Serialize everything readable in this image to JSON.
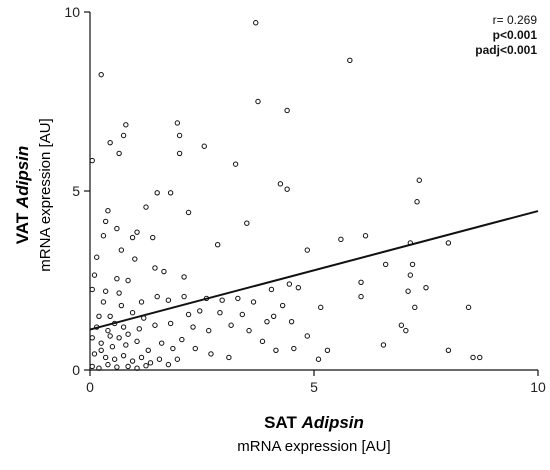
{
  "chart_data": {
    "type": "scatter",
    "xlim": [
      0,
      10
    ],
    "ylim": [
      0,
      10
    ],
    "xticks": [
      0,
      5,
      10
    ],
    "yticks": [
      0,
      5,
      10
    ],
    "xlabel": {
      "bold": "SAT",
      "italic": "Adipsin",
      "line2": "mRNA expression [AU]"
    },
    "ylabel": {
      "bold": "VAT",
      "italic": "Adipsin",
      "line2": "mRNA expression [AU]"
    },
    "annotations": {
      "r": "r= 0.269",
      "p": "p<0.001",
      "padj": "padj<0.001"
    },
    "regression": {
      "x": [
        0,
        10
      ],
      "y": [
        1.13,
        4.44
      ]
    },
    "points": [
      [
        0.25,
        8.25
      ],
      [
        3.7,
        9.7
      ],
      [
        5.8,
        8.65
      ],
      [
        3.75,
        7.5
      ],
      [
        4.4,
        7.25
      ],
      [
        1.95,
        6.9
      ],
      [
        2.0,
        6.55
      ],
      [
        0.8,
        6.85
      ],
      [
        0.75,
        6.55
      ],
      [
        0.45,
        6.35
      ],
      [
        0.65,
        6.05
      ],
      [
        2.55,
        6.25
      ],
      [
        2.0,
        6.05
      ],
      [
        3.25,
        5.75
      ],
      [
        7.35,
        5.3
      ],
      [
        4.25,
        5.2
      ],
      [
        4.4,
        5.05
      ],
      [
        1.5,
        4.95
      ],
      [
        1.8,
        4.95
      ],
      [
        7.3,
        4.7
      ],
      [
        1.25,
        4.55
      ],
      [
        0.4,
        4.45
      ],
      [
        0.35,
        4.15
      ],
      [
        2.2,
        4.4
      ],
      [
        3.5,
        4.1
      ],
      [
        0.6,
        3.95
      ],
      [
        1.05,
        3.85
      ],
      [
        0.3,
        3.75
      ],
      [
        0.95,
        3.7
      ],
      [
        1.4,
        3.7
      ],
      [
        5.6,
        3.65
      ],
      [
        6.15,
        3.75
      ],
      [
        7.15,
        3.55
      ],
      [
        8.0,
        3.55
      ],
      [
        2.85,
        3.5
      ],
      [
        4.85,
        3.35
      ],
      [
        0.7,
        3.35
      ],
      [
        0.15,
        3.15
      ],
      [
        1.0,
        3.1
      ],
      [
        6.6,
        2.95
      ],
      [
        7.2,
        2.95
      ],
      [
        1.45,
        2.85
      ],
      [
        1.65,
        2.75
      ],
      [
        2.1,
        2.6
      ],
      [
        7.5,
        2.3
      ],
      [
        0.05,
        2.25
      ],
      [
        0.35,
        2.2
      ],
      [
        0.6,
        2.55
      ],
      [
        0.85,
        2.5
      ],
      [
        0.65,
        2.15
      ],
      [
        1.5,
        2.05
      ],
      [
        1.75,
        1.95
      ],
      [
        2.1,
        2.05
      ],
      [
        2.6,
        2.0
      ],
      [
        4.05,
        2.25
      ],
      [
        4.45,
        2.4
      ],
      [
        4.65,
        2.3
      ],
      [
        6.05,
        2.45
      ],
      [
        7.15,
        2.65
      ],
      [
        7.1,
        2.2
      ],
      [
        6.05,
        2.05
      ],
      [
        2.95,
        1.95
      ],
      [
        3.3,
        2.0
      ],
      [
        3.65,
        1.9
      ],
      [
        4.3,
        1.8
      ],
      [
        5.15,
        1.75
      ],
      [
        7.25,
        1.75
      ],
      [
        8.45,
        1.75
      ],
      [
        6.95,
        1.25
      ],
      [
        2.45,
        1.65
      ],
      [
        2.2,
        1.55
      ],
      [
        2.9,
        1.6
      ],
      [
        3.4,
        1.55
      ],
      [
        3.95,
        1.35
      ],
      [
        4.1,
        1.5
      ],
      [
        4.5,
        1.35
      ],
      [
        0.2,
        1.5
      ],
      [
        0.45,
        1.5
      ],
      [
        0.7,
        1.8
      ],
      [
        0.95,
        1.6
      ],
      [
        1.2,
        1.45
      ],
      [
        0.15,
        1.2
      ],
      [
        0.4,
        1.1
      ],
      [
        0.85,
        1.0
      ],
      [
        1.1,
        1.15
      ],
      [
        1.45,
        1.25
      ],
      [
        1.8,
        1.3
      ],
      [
        2.3,
        1.2
      ],
      [
        2.65,
        1.1
      ],
      [
        3.15,
        1.25
      ],
      [
        3.55,
        1.1
      ],
      [
        4.85,
        0.95
      ],
      [
        6.55,
        0.7
      ],
      [
        7.05,
        1.1
      ],
      [
        8.0,
        0.55
      ],
      [
        8.55,
        0.35
      ],
      [
        8.7,
        0.35
      ],
      [
        5.1,
        0.3
      ],
      [
        5.3,
        0.55
      ],
      [
        3.1,
        0.35
      ],
      [
        2.35,
        0.6
      ],
      [
        2.7,
        0.45
      ],
      [
        3.85,
        0.8
      ],
      [
        4.15,
        0.55
      ],
      [
        4.55,
        0.6
      ],
      [
        0.05,
        0.9
      ],
      [
        0.25,
        0.75
      ],
      [
        0.5,
        0.65
      ],
      [
        0.65,
        0.9
      ],
      [
        0.8,
        0.7
      ],
      [
        1.05,
        0.8
      ],
      [
        1.3,
        0.55
      ],
      [
        1.6,
        0.75
      ],
      [
        1.85,
        0.6
      ],
      [
        2.05,
        0.85
      ],
      [
        0.1,
        0.45
      ],
      [
        0.35,
        0.35
      ],
      [
        0.55,
        0.3
      ],
      [
        0.75,
        0.4
      ],
      [
        0.95,
        0.25
      ],
      [
        1.15,
        0.35
      ],
      [
        1.35,
        0.2
      ],
      [
        1.55,
        0.3
      ],
      [
        1.75,
        0.15
      ],
      [
        1.95,
        0.3
      ],
      [
        0.05,
        0.1
      ],
      [
        0.2,
        0.05
      ],
      [
        0.4,
        0.15
      ],
      [
        0.6,
        0.08
      ],
      [
        0.85,
        0.1
      ],
      [
        1.05,
        0.05
      ],
      [
        1.25,
        0.12
      ],
      [
        0.3,
        1.9
      ],
      [
        0.1,
        2.65
      ],
      [
        0.05,
        5.85
      ],
      [
        0.55,
        1.3
      ],
      [
        0.75,
        1.2
      ],
      [
        0.25,
        0.55
      ],
      [
        0.45,
        0.95
      ],
      [
        1.15,
        1.9
      ]
    ]
  }
}
